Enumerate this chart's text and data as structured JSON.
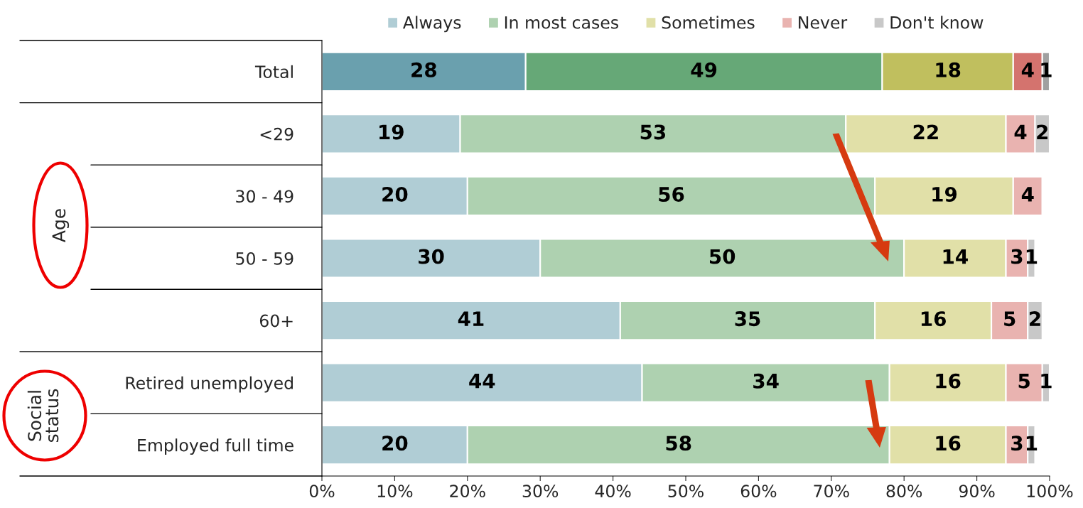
{
  "chart_data": {
    "type": "bar",
    "orientation": "horizontal",
    "stacked": true,
    "data_labels": true,
    "categories": [
      "Total",
      "<29",
      "30 - 49",
      "50 - 59",
      "60+",
      "Retired unemployed",
      "Employed full time"
    ],
    "series": [
      {
        "name": "Always",
        "color": "#b0cdd5",
        "colors": [
          "#6aa0ae",
          "#b0cdd5",
          "#b0cdd5",
          "#b0cdd5",
          "#b0cdd5",
          "#b0cdd5",
          "#b0cdd5"
        ],
        "values": [
          28,
          19,
          20,
          30,
          41,
          44,
          20
        ]
      },
      {
        "name": "In most cases",
        "color": "#aed1b0",
        "colors": [
          "#66a877",
          "#aed1b0",
          "#aed1b0",
          "#aed1b0",
          "#aed1b0",
          "#aed1b0",
          "#aed1b0"
        ],
        "values": [
          49,
          53,
          56,
          50,
          35,
          34,
          58
        ]
      },
      {
        "name": "Sometimes",
        "color": "#e1e0a8",
        "colors": [
          "#c0bf5e",
          "#e1e0a8",
          "#e1e0a8",
          "#e1e0a8",
          "#e1e0a8",
          "#e1e0a8",
          "#e1e0a8"
        ],
        "values": [
          18,
          22,
          19,
          14,
          16,
          16,
          16
        ]
      },
      {
        "name": "Never",
        "color": "#e9b3b0",
        "colors": [
          "#d4736e",
          "#e9b3b0",
          "#e9b3b0",
          "#e9b3b0",
          "#e9b3b0",
          "#e9b3b0",
          "#e9b3b0"
        ],
        "values": [
          4,
          4,
          4,
          3,
          5,
          5,
          3
        ]
      },
      {
        "name": "Don't know",
        "color": "#c8c8c8",
        "colors": [
          "#a0a0a0",
          "#c8c8c8",
          "#c8c8c8",
          "#c8c8c8",
          "#c8c8c8",
          "#c8c8c8",
          "#c8c8c8"
        ],
        "values": [
          1,
          2,
          null,
          1,
          2,
          1,
          1
        ]
      }
    ],
    "xlim": [
      0,
      100
    ],
    "xticks": [
      {
        "value": 0,
        "label": "0%"
      },
      {
        "value": 10,
        "label": "10%"
      },
      {
        "value": 20,
        "label": "20%"
      },
      {
        "value": 30,
        "label": "30%"
      },
      {
        "value": 40,
        "label": "40%"
      },
      {
        "value": 50,
        "label": "50%"
      },
      {
        "value": 60,
        "label": "60%"
      },
      {
        "value": 70,
        "label": "70%"
      },
      {
        "value": 80,
        "label": "80%"
      },
      {
        "value": 90,
        "label": "90%"
      },
      {
        "value": 100,
        "label": "100%"
      }
    ],
    "grid": false,
    "legend": "top",
    "annotations": [
      "Age",
      "Social status"
    ]
  }
}
